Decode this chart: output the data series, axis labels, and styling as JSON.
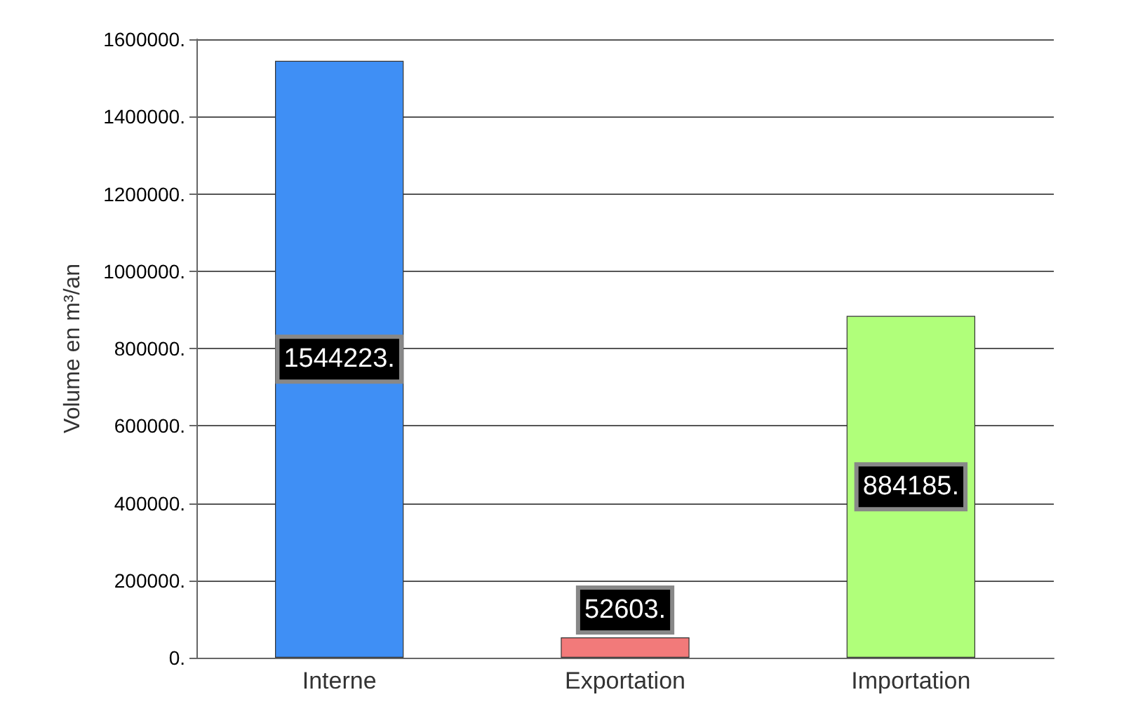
{
  "chart_data": {
    "type": "bar",
    "ylabel": "Volume en m³/an",
    "categories": [
      "Interne",
      "Exportation",
      "Importation"
    ],
    "values": [
      1544223,
      52603,
      884185
    ],
    "colors": [
      "#3f8ff5",
      "#f27a7a",
      "#b0ff7a"
    ],
    "value_labels": [
      "1544223.",
      "52603.",
      "884185."
    ],
    "ylim": [
      0,
      1600000
    ],
    "yticks": [
      {
        "value": 0,
        "label": "0."
      },
      {
        "value": 200000,
        "label": "200000."
      },
      {
        "value": 400000,
        "label": "400000."
      },
      {
        "value": 600000,
        "label": "600000."
      },
      {
        "value": 800000,
        "label": "800000."
      },
      {
        "value": 1000000,
        "label": "1000000."
      },
      {
        "value": 1200000,
        "label": "1200000."
      },
      {
        "value": 1400000,
        "label": "1400000."
      },
      {
        "value": 1600000,
        "label": "1600000."
      }
    ],
    "grid": "y"
  }
}
